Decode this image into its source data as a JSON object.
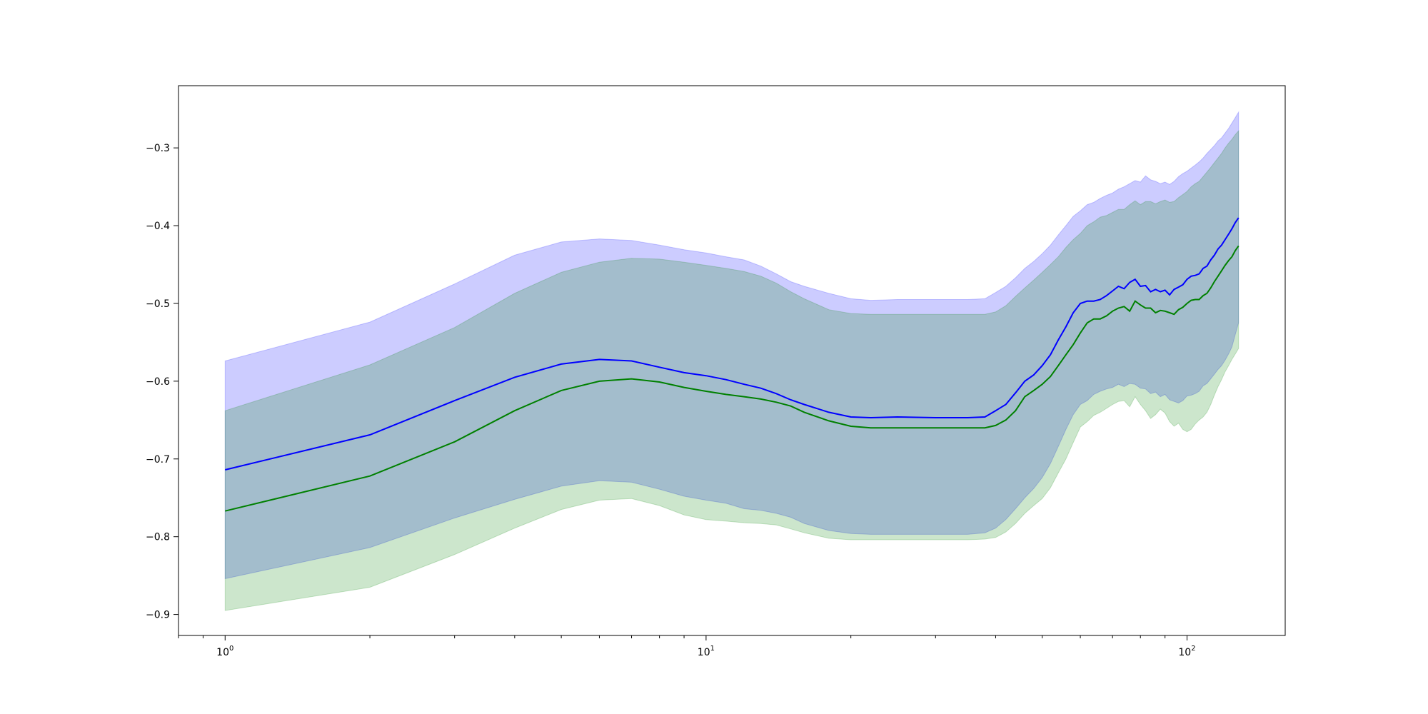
{
  "chart_data": {
    "type": "line",
    "title": "",
    "xlabel": "",
    "ylabel": "",
    "x_scale": "log",
    "xlim": [
      0.8,
      160
    ],
    "ylim": [
      -0.927,
      -0.22
    ],
    "grid": false,
    "legend": "none",
    "x_ticks": [
      {
        "value": 1,
        "base": "10",
        "exp": "0"
      },
      {
        "value": 10,
        "base": "10",
        "exp": "1"
      },
      {
        "value": 100,
        "base": "10",
        "exp": "2"
      }
    ],
    "y_ticks": [
      {
        "value": -0.9,
        "label": "−0.9"
      },
      {
        "value": -0.8,
        "label": "−0.8"
      },
      {
        "value": -0.7,
        "label": "−0.7"
      },
      {
        "value": -0.6,
        "label": "−0.6"
      },
      {
        "value": -0.5,
        "label": "−0.5"
      },
      {
        "value": -0.4,
        "label": "−0.4"
      },
      {
        "value": -0.3,
        "label": "−0.3"
      }
    ],
    "series": [
      {
        "color": "#0000ff",
        "band_color": "#0000ff",
        "band_opacity": 0.2,
        "x": [
          1,
          2,
          3,
          4,
          5,
          6,
          7,
          8,
          9,
          10,
          11,
          12,
          13,
          14,
          15,
          16,
          18,
          20,
          22,
          25,
          30,
          35,
          38,
          40,
          42,
          44,
          46,
          48,
          50,
          52,
          54,
          56,
          58,
          60,
          62,
          64,
          66,
          68,
          70,
          72,
          74,
          76,
          78,
          80,
          82,
          84,
          86,
          88,
          90,
          92,
          94,
          96,
          98,
          100,
          102,
          104,
          106,
          108,
          110,
          112,
          114,
          116,
          118,
          120,
          122,
          124,
          126,
          128
        ],
        "mean": [
          -0.714,
          -0.669,
          -0.625,
          -0.595,
          -0.578,
          -0.572,
          -0.574,
          -0.582,
          -0.589,
          -0.593,
          -0.598,
          -0.604,
          -0.609,
          -0.616,
          -0.624,
          -0.63,
          -0.64,
          -0.646,
          -0.647,
          -0.646,
          -0.647,
          -0.647,
          -0.646,
          -0.638,
          -0.63,
          -0.615,
          -0.6,
          -0.592,
          -0.58,
          -0.566,
          -0.547,
          -0.53,
          -0.512,
          -0.5,
          -0.497,
          -0.497,
          -0.495,
          -0.49,
          -0.484,
          -0.478,
          -0.481,
          -0.473,
          -0.469,
          -0.478,
          -0.477,
          -0.485,
          -0.482,
          -0.485,
          -0.483,
          -0.489,
          -0.482,
          -0.479,
          -0.476,
          -0.469,
          -0.465,
          -0.464,
          -0.462,
          -0.455,
          -0.452,
          -0.444,
          -0.438,
          -0.43,
          -0.425,
          -0.418,
          -0.411,
          -0.404,
          -0.396,
          -0.39
        ],
        "upper": [
          -0.574,
          -0.524,
          -0.475,
          -0.438,
          -0.421,
          -0.417,
          -0.419,
          -0.425,
          -0.431,
          -0.435,
          -0.44,
          -0.444,
          -0.452,
          -0.462,
          -0.472,
          -0.478,
          -0.487,
          -0.494,
          -0.496,
          -0.495,
          -0.495,
          -0.495,
          -0.494,
          -0.486,
          -0.478,
          -0.467,
          -0.455,
          -0.446,
          -0.436,
          -0.425,
          -0.412,
          -0.4,
          -0.388,
          -0.381,
          -0.373,
          -0.37,
          -0.365,
          -0.361,
          -0.358,
          -0.353,
          -0.35,
          -0.346,
          -0.342,
          -0.344,
          -0.336,
          -0.341,
          -0.343,
          -0.346,
          -0.344,
          -0.347,
          -0.343,
          -0.337,
          -0.333,
          -0.33,
          -0.326,
          -0.322,
          -0.318,
          -0.313,
          -0.307,
          -0.302,
          -0.297,
          -0.291,
          -0.287,
          -0.281,
          -0.275,
          -0.268,
          -0.261,
          -0.254
        ],
        "lower": [
          -0.854,
          -0.814,
          -0.776,
          -0.752,
          -0.735,
          -0.728,
          -0.73,
          -0.739,
          -0.748,
          -0.753,
          -0.757,
          -0.764,
          -0.766,
          -0.77,
          -0.775,
          -0.783,
          -0.792,
          -0.796,
          -0.797,
          -0.797,
          -0.797,
          -0.797,
          -0.795,
          -0.789,
          -0.778,
          -0.764,
          -0.75,
          -0.738,
          -0.724,
          -0.706,
          -0.684,
          -0.662,
          -0.643,
          -0.63,
          -0.625,
          -0.617,
          -0.613,
          -0.61,
          -0.608,
          -0.604,
          -0.607,
          -0.603,
          -0.604,
          -0.609,
          -0.61,
          -0.616,
          -0.614,
          -0.62,
          -0.617,
          -0.624,
          -0.626,
          -0.628,
          -0.625,
          -0.619,
          -0.618,
          -0.616,
          -0.613,
          -0.606,
          -0.603,
          -0.597,
          -0.591,
          -0.585,
          -0.58,
          -0.573,
          -0.565,
          -0.556,
          -0.54,
          -0.525
        ]
      },
      {
        "color": "#008000",
        "band_color": "#008000",
        "band_opacity": 0.2,
        "x": [
          1,
          2,
          3,
          4,
          5,
          6,
          7,
          8,
          9,
          10,
          11,
          12,
          13,
          14,
          15,
          16,
          18,
          20,
          22,
          25,
          30,
          35,
          38,
          40,
          42,
          44,
          46,
          48,
          50,
          52,
          54,
          56,
          58,
          60,
          62,
          64,
          66,
          68,
          70,
          72,
          74,
          76,
          78,
          80,
          82,
          84,
          86,
          88,
          90,
          92,
          94,
          96,
          98,
          100,
          102,
          104,
          106,
          108,
          110,
          112,
          114,
          116,
          118,
          120,
          122,
          124,
          126,
          128
        ],
        "mean": [
          -0.767,
          -0.722,
          -0.678,
          -0.638,
          -0.612,
          -0.6,
          -0.597,
          -0.601,
          -0.608,
          -0.613,
          -0.617,
          -0.62,
          -0.623,
          -0.627,
          -0.632,
          -0.64,
          -0.651,
          -0.658,
          -0.66,
          -0.66,
          -0.66,
          -0.66,
          -0.66,
          -0.657,
          -0.65,
          -0.638,
          -0.62,
          -0.612,
          -0.604,
          -0.594,
          -0.58,
          -0.566,
          -0.553,
          -0.538,
          -0.525,
          -0.52,
          -0.52,
          -0.516,
          -0.51,
          -0.506,
          -0.504,
          -0.51,
          -0.497,
          -0.502,
          -0.506,
          -0.506,
          -0.512,
          -0.509,
          -0.51,
          -0.512,
          -0.514,
          -0.508,
          -0.505,
          -0.5,
          -0.496,
          -0.495,
          -0.495,
          -0.49,
          -0.487,
          -0.48,
          -0.472,
          -0.465,
          -0.458,
          -0.451,
          -0.445,
          -0.44,
          -0.432,
          -0.426
        ],
        "upper": [
          -0.638,
          -0.579,
          -0.531,
          -0.487,
          -0.46,
          -0.447,
          -0.442,
          -0.443,
          -0.447,
          -0.451,
          -0.455,
          -0.459,
          -0.465,
          -0.474,
          -0.485,
          -0.494,
          -0.508,
          -0.513,
          -0.514,
          -0.514,
          -0.514,
          -0.514,
          -0.514,
          -0.511,
          -0.503,
          -0.491,
          -0.48,
          -0.47,
          -0.46,
          -0.45,
          -0.44,
          -0.428,
          -0.418,
          -0.41,
          -0.4,
          -0.395,
          -0.389,
          -0.387,
          -0.383,
          -0.379,
          -0.379,
          -0.373,
          -0.368,
          -0.373,
          -0.369,
          -0.369,
          -0.372,
          -0.369,
          -0.367,
          -0.37,
          -0.369,
          -0.364,
          -0.36,
          -0.356,
          -0.35,
          -0.346,
          -0.343,
          -0.337,
          -0.331,
          -0.325,
          -0.319,
          -0.313,
          -0.307,
          -0.3,
          -0.294,
          -0.289,
          -0.283,
          -0.278
        ],
        "lower": [
          -0.895,
          -0.865,
          -0.823,
          -0.789,
          -0.765,
          -0.753,
          -0.751,
          -0.76,
          -0.772,
          -0.778,
          -0.78,
          -0.782,
          -0.783,
          -0.785,
          -0.79,
          -0.795,
          -0.802,
          -0.804,
          -0.804,
          -0.804,
          -0.804,
          -0.804,
          -0.803,
          -0.801,
          -0.794,
          -0.783,
          -0.77,
          -0.76,
          -0.751,
          -0.737,
          -0.718,
          -0.7,
          -0.679,
          -0.659,
          -0.652,
          -0.644,
          -0.64,
          -0.635,
          -0.63,
          -0.626,
          -0.625,
          -0.633,
          -0.62,
          -0.63,
          -0.638,
          -0.648,
          -0.643,
          -0.636,
          -0.641,
          -0.652,
          -0.658,
          -0.654,
          -0.662,
          -0.665,
          -0.662,
          -0.655,
          -0.65,
          -0.646,
          -0.64,
          -0.63,
          -0.618,
          -0.607,
          -0.598,
          -0.588,
          -0.58,
          -0.572,
          -0.565,
          -0.558
        ]
      }
    ]
  }
}
